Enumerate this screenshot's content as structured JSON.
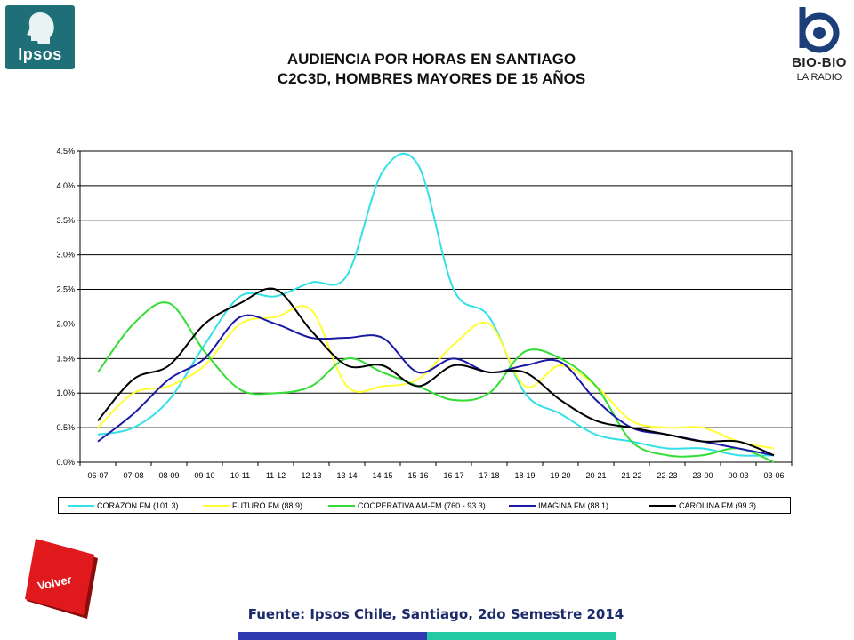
{
  "header": {
    "title_line1": "AUDIENCIA POR HORAS EN SANTIAGO",
    "title_line2": "C2C3D, HOMBRES MAYORES DE 15 AÑOS"
  },
  "logos": {
    "ipsos": "Ipsos",
    "biobio_name": "BIO-BIO",
    "biobio_sub": "LA RADIO"
  },
  "buttons": {
    "volver": "Volver"
  },
  "footer": {
    "source": "Fuente: Ipsos Chile, Santiago, 2do Semestre 2014"
  },
  "colors": {
    "ipsos_brand": "#1f6f78",
    "volver_red": "#e0191d",
    "bar_blue": "#2f3ab0",
    "bar_teal": "#22c9a3"
  },
  "chart_data": {
    "type": "line",
    "categories": [
      "06-07",
      "07-08",
      "08-09",
      "09-10",
      "10-11",
      "11-12",
      "12-13",
      "13-14",
      "14-15",
      "15-16",
      "16-17",
      "17-18",
      "18-19",
      "19-20",
      "20-21",
      "21-22",
      "22-23",
      "23-00",
      "00-03",
      "03-06"
    ],
    "ylim": [
      0,
      4.5
    ],
    "yticks": [
      "0.0%",
      "0.5%",
      "1.0%",
      "1.5%",
      "2.0%",
      "2.5%",
      "3.0%",
      "3.5%",
      "4.0%",
      "4.5%"
    ],
    "grid": true,
    "legend_position": "bottom",
    "series": [
      {
        "name": "CORAZON FM (101.3)",
        "color": "#33e0e6",
        "values": [
          0.4,
          0.5,
          0.9,
          1.7,
          2.4,
          2.4,
          2.6,
          2.7,
          4.2,
          4.3,
          2.5,
          2.1,
          1.0,
          0.7,
          0.4,
          0.3,
          0.2,
          0.2,
          0.1,
          0.1
        ]
      },
      {
        "name": "FUTURO FM (88.9)",
        "color": "#ffff33",
        "values": [
          0.5,
          1.0,
          1.1,
          1.4,
          2.0,
          2.1,
          2.2,
          1.1,
          1.1,
          1.2,
          1.7,
          2.0,
          1.1,
          1.4,
          1.1,
          0.6,
          0.5,
          0.5,
          0.3,
          0.2
        ]
      },
      {
        "name": "COOPERATIVA AM-FM (760 - 93.3)",
        "color": "#33dd33",
        "values": [
          1.3,
          2.0,
          2.3,
          1.6,
          1.05,
          1.0,
          1.1,
          1.5,
          1.3,
          1.1,
          0.9,
          1.0,
          1.6,
          1.5,
          1.1,
          0.3,
          0.1,
          0.1,
          0.2,
          0.0
        ]
      },
      {
        "name": "IMAGINA FM (88.1)",
        "color": "#1a1aa6",
        "values": [
          0.3,
          0.7,
          1.2,
          1.5,
          2.1,
          2.0,
          1.8,
          1.8,
          1.8,
          1.3,
          1.5,
          1.3,
          1.4,
          1.45,
          0.9,
          0.5,
          0.4,
          0.3,
          0.2,
          0.1
        ]
      },
      {
        "name": "CAROLINA FM (99.3)",
        "color": "#000000",
        "values": [
          0.6,
          1.2,
          1.4,
          2.0,
          2.3,
          2.5,
          1.9,
          1.4,
          1.4,
          1.1,
          1.4,
          1.3,
          1.3,
          0.9,
          0.6,
          0.5,
          0.4,
          0.3,
          0.3,
          0.1
        ]
      }
    ]
  }
}
